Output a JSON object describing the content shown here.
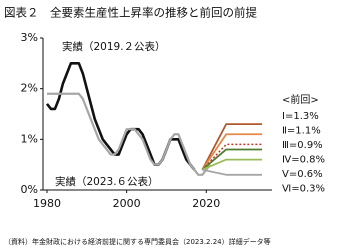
{
  "chart_data": {
    "type": "line",
    "title": "図表２　全要素生産性上昇率の推移と前回の前提",
    "source": "（資料）年金財政における経済前提に関する専門委員会（2023.2.24）詳細データ等",
    "legend_title": "<前回>",
    "xlim": [
      1979,
      2036
    ],
    "xticks": [
      1980,
      2000,
      2020
    ],
    "ylim": [
      0,
      3
    ],
    "yticks": [
      {
        "value": 0,
        "label": "0%"
      },
      {
        "value": 1,
        "label": "1%"
      },
      {
        "value": 2,
        "label": "2%"
      },
      {
        "value": 3,
        "label": "3%"
      }
    ],
    "series": [
      {
        "name": "実績（2019.２公表）",
        "color": "#111111",
        "width": 2.6,
        "dash": "",
        "x": [
          1980,
          1981,
          1982,
          1983,
          1984,
          1985,
          1986,
          1987,
          1988,
          1989,
          1990,
          1991,
          1992,
          1993,
          1994,
          1995,
          1996,
          1997,
          1998,
          1999,
          2000,
          2001,
          2002,
          2003,
          2004,
          2005,
          2006,
          2007,
          2008,
          2009,
          2010,
          2011,
          2012,
          2013,
          2014,
          2015,
          2016,
          2017
        ],
        "values": [
          1.7,
          1.6,
          1.6,
          1.8,
          2.1,
          2.3,
          2.5,
          2.5,
          2.5,
          2.3,
          2.0,
          1.7,
          1.4,
          1.2,
          1.0,
          0.9,
          0.8,
          0.7,
          0.7,
          0.9,
          1.1,
          1.2,
          1.2,
          1.2,
          1.1,
          0.9,
          0.7,
          0.5,
          0.5,
          0.6,
          0.8,
          1.0,
          1.0,
          1.0,
          0.8,
          0.6,
          0.5,
          0.4
        ]
      },
      {
        "name": "実績（2023.６公表）",
        "color": "#a6a6a6",
        "width": 2.2,
        "dash": "",
        "x": [
          1980,
          1981,
          1982,
          1983,
          1984,
          1985,
          1986,
          1987,
          1988,
          1989,
          1990,
          1991,
          1992,
          1993,
          1994,
          1995,
          1996,
          1997,
          1998,
          1999,
          2000,
          2001,
          2002,
          2003,
          2004,
          2005,
          2006,
          2007,
          2008,
          2009,
          2010,
          2011,
          2012,
          2013,
          2014,
          2015,
          2016,
          2017,
          2018,
          2019,
          2020,
          2021
        ],
        "values": [
          1.9,
          1.9,
          1.9,
          1.9,
          1.9,
          1.9,
          1.9,
          1.9,
          1.9,
          1.8,
          1.6,
          1.4,
          1.2,
          1.0,
          0.9,
          0.8,
          0.7,
          0.7,
          0.8,
          1.0,
          1.2,
          1.2,
          1.2,
          1.1,
          1.0,
          0.8,
          0.6,
          0.5,
          0.5,
          0.6,
          0.8,
          1.0,
          1.1,
          1.1,
          0.9,
          0.7,
          0.5,
          0.4,
          0.3,
          0.3,
          0.4,
          0.5
        ]
      },
      {
        "name": "Ⅰ=1.3%",
        "color": "#b0582a",
        "width": 1.8,
        "dash": "",
        "x": [
          2019,
          2025,
          2034
        ],
        "values": [
          0.4,
          1.3,
          1.3
        ]
      },
      {
        "name": "Ⅱ=1.1%",
        "color": "#e3874a",
        "width": 1.8,
        "dash": "",
        "x": [
          2019,
          2025,
          2034
        ],
        "values": [
          0.4,
          1.1,
          1.1
        ]
      },
      {
        "name": "Ⅲ=0.9%",
        "color": "#c0392b",
        "width": 1.5,
        "dash": "2 2",
        "x": [
          2019,
          2025,
          2034
        ],
        "values": [
          0.4,
          0.9,
          0.9
        ]
      },
      {
        "name": "Ⅳ=0.8%",
        "color": "#4e7d2e",
        "width": 1.8,
        "dash": "",
        "x": [
          2019,
          2025,
          2034
        ],
        "values": [
          0.4,
          0.8,
          0.8
        ]
      },
      {
        "name": "Ⅴ=0.6%",
        "color": "#9bbb59",
        "width": 1.8,
        "dash": "",
        "x": [
          2019,
          2025,
          2034
        ],
        "values": [
          0.4,
          0.6,
          0.6
        ]
      },
      {
        "name": "Ⅵ=0.3%",
        "color": "#a6a6a6",
        "width": 1.8,
        "dash": "",
        "x": [
          2019,
          2025,
          2034
        ],
        "values": [
          0.4,
          0.3,
          0.3
        ]
      }
    ]
  }
}
